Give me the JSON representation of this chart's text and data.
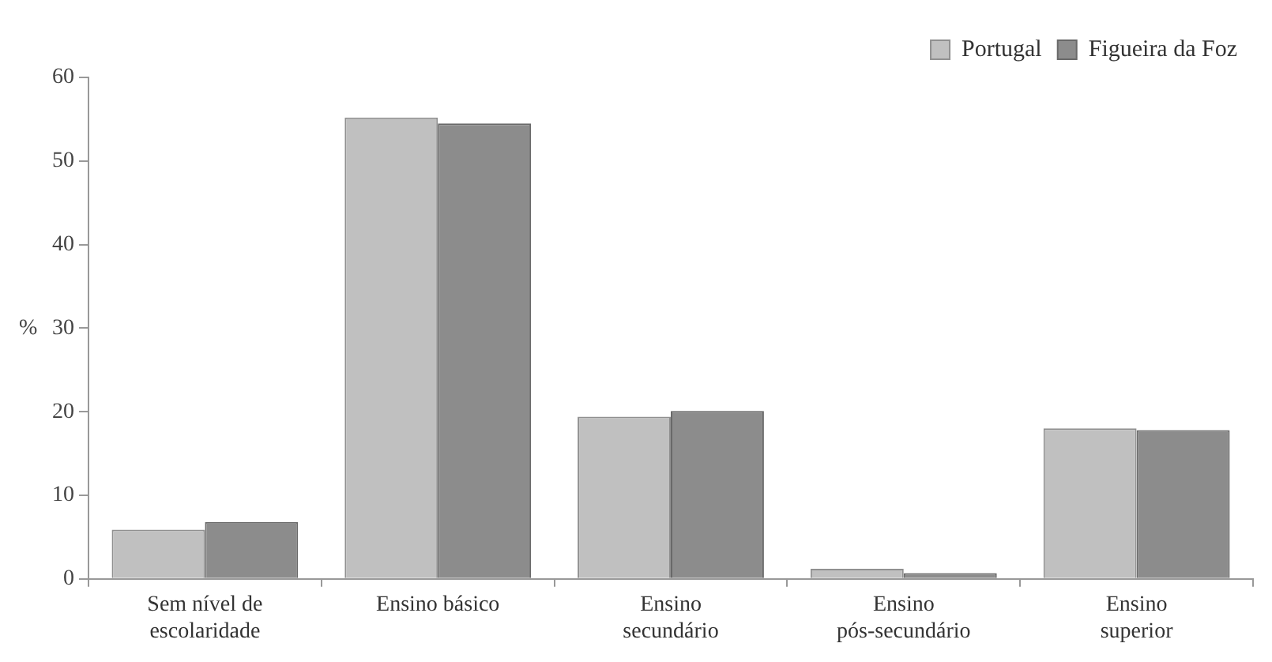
{
  "chart_data": {
    "type": "bar",
    "ylabel": "%",
    "categories": [
      "Sem nível de escolaridade",
      "Ensino básico",
      "Ensino secundário",
      "Ensino pós-secundário",
      "Ensino superior"
    ],
    "series": [
      {
        "name": "Portugal",
        "color": "#c0c0c0",
        "values": [
          5.9,
          55.2,
          19.4,
          1.2,
          18.0
        ]
      },
      {
        "name": "Figueira da Foz",
        "color": "#8c8c8c",
        "values": [
          6.8,
          54.5,
          20.1,
          0.7,
          17.8
        ]
      }
    ],
    "ylim": [
      0,
      60
    ],
    "yticks": [
      0,
      10,
      20,
      30,
      40,
      50,
      60
    ],
    "grid": false,
    "legend": "top right"
  }
}
